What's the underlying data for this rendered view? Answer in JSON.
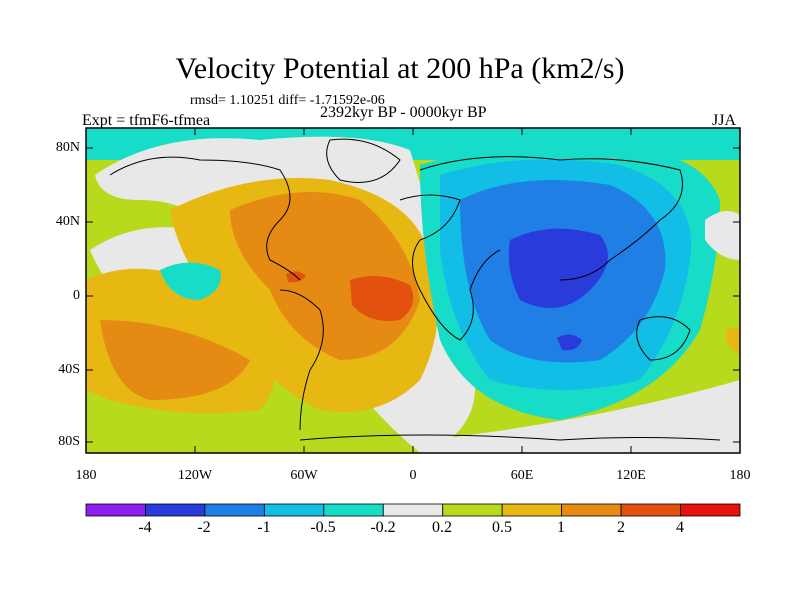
{
  "title": "Velocity Potential at 200 hPa (km2/s)",
  "stats": "rmsd= 1.10251 diff= -1.71592e-06",
  "experiment": "Expt = tfmF6-tfmea",
  "period": "2392kyr BP - 0000kyr BP",
  "season": "JJA",
  "y_axis_labels": [
    "80N",
    "40N",
    "0",
    "40S",
    "80S"
  ],
  "x_axis_labels": [
    "180",
    "120W",
    "60W",
    "0",
    "60E",
    "120E",
    "180"
  ],
  "colorbar": {
    "colors": [
      "#8f1fef",
      "#2a3bdb",
      "#1f7fe4",
      "#12bde6",
      "#17dcc8",
      "#e8e8e8",
      "#b7db1c",
      "#e7b811",
      "#e58b13",
      "#e2520e",
      "#e7120e"
    ],
    "labels": [
      "-4",
      "-2",
      "-1",
      "-0.5",
      "-0.2",
      "0.2",
      "0.5",
      "1",
      "2",
      "4"
    ]
  }
}
